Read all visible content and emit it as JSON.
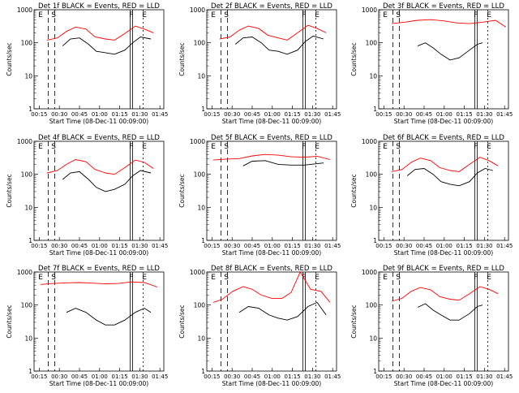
{
  "figure": {
    "xlabel": "Start Time (08-Dec-11 00:09:00)",
    "ylabel": "Counts/sec",
    "xticks": [
      "00:15",
      "00:30",
      "00:45",
      "01:00",
      "01:15",
      "01:30",
      "01:45"
    ],
    "yticks": [
      "1",
      "10",
      "100",
      "1000"
    ],
    "colors": {
      "events": "#000000",
      "lld": "#ff0000"
    }
  },
  "chart_data": [
    {
      "type": "line",
      "title": "Det 1f BLACK = Events, RED = LLD",
      "flags": [
        "E",
        "S",
        "F",
        "E"
      ],
      "series": [
        {
          "color": "#ff0000",
          "x": [
            0.1,
            0.18,
            0.25,
            0.32,
            0.4,
            0.47,
            0.55,
            0.62,
            0.7,
            0.78,
            0.85,
            0.92
          ],
          "y": [
            120,
            140,
            220,
            300,
            260,
            150,
            130,
            120,
            190,
            320,
            260,
            200
          ]
        },
        {
          "color": "#000000",
          "x": [
            0.22,
            0.28,
            0.35,
            0.42,
            0.48,
            0.55,
            0.62,
            0.7,
            0.76,
            0.82,
            0.9
          ],
          "y": [
            80,
            130,
            140,
            90,
            55,
            50,
            45,
            60,
            100,
            150,
            130
          ]
        }
      ]
    },
    {
      "type": "line",
      "title": "Det 2f BLACK = Events, RED = LLD",
      "flags": [
        "E",
        "S",
        "F",
        "E"
      ],
      "series": [
        {
          "color": "#ff0000",
          "x": [
            0.1,
            0.18,
            0.25,
            0.32,
            0.4,
            0.47,
            0.55,
            0.62,
            0.7,
            0.78,
            0.85,
            0.92
          ],
          "y": [
            130,
            150,
            240,
            320,
            270,
            170,
            140,
            120,
            200,
            340,
            270,
            200
          ]
        },
        {
          "color": "#000000",
          "x": [
            0.22,
            0.28,
            0.35,
            0.42,
            0.48,
            0.55,
            0.62,
            0.7,
            0.76,
            0.82,
            0.9
          ],
          "y": [
            90,
            140,
            150,
            100,
            60,
            55,
            45,
            60,
            110,
            160,
            130
          ]
        }
      ]
    },
    {
      "type": "line",
      "title": "Det 3f BLACK = Events, RED = LLD",
      "flags": [
        "E",
        "S",
        "F",
        "E"
      ],
      "series": [
        {
          "color": "#ff0000",
          "x": [
            0.1,
            0.2,
            0.3,
            0.4,
            0.5,
            0.6,
            0.7,
            0.8,
            0.9,
            0.98
          ],
          "y": [
            380,
            420,
            480,
            500,
            460,
            400,
            380,
            420,
            480,
            300
          ]
        },
        {
          "color": "#000000",
          "x": [
            0.3,
            0.36,
            0.42,
            0.48,
            0.55,
            0.62,
            0.7,
            0.76,
            0.8
          ],
          "y": [
            80,
            100,
            70,
            45,
            30,
            35,
            60,
            90,
            100
          ]
        }
      ]
    },
    {
      "type": "line",
      "title": "Det 4f BLACK = Events, RED = LLD",
      "flags": [
        "E",
        "S",
        "F",
        "E"
      ],
      "series": [
        {
          "color": "#ff0000",
          "x": [
            0.1,
            0.18,
            0.25,
            0.32,
            0.4,
            0.47,
            0.55,
            0.62,
            0.7,
            0.78,
            0.85,
            0.92
          ],
          "y": [
            110,
            130,
            200,
            280,
            240,
            140,
            110,
            100,
            160,
            270,
            230,
            150
          ]
        },
        {
          "color": "#000000",
          "x": [
            0.22,
            0.28,
            0.35,
            0.42,
            0.48,
            0.55,
            0.62,
            0.7,
            0.76,
            0.82,
            0.9
          ],
          "y": [
            70,
            110,
            120,
            70,
            40,
            30,
            35,
            50,
            90,
            130,
            110
          ]
        }
      ]
    },
    {
      "type": "line",
      "title": "Det 5f BLACK = Events, RED = LLD",
      "flags": [
        "E",
        "S",
        "F",
        "E"
      ],
      "series": [
        {
          "color": "#ff0000",
          "x": [
            0.05,
            0.15,
            0.25,
            0.35,
            0.45,
            0.55,
            0.65,
            0.75,
            0.85,
            0.95
          ],
          "y": [
            270,
            290,
            300,
            360,
            400,
            380,
            340,
            330,
            350,
            280
          ]
        },
        {
          "color": "#000000",
          "x": [
            0.28,
            0.35,
            0.45,
            0.55,
            0.65,
            0.75,
            0.85,
            0.9
          ],
          "y": [
            180,
            250,
            260,
            200,
            190,
            190,
            210,
            220
          ]
        }
      ]
    },
    {
      "type": "line",
      "title": "Det 6f BLACK = Events, RED = LLD",
      "flags": [
        "E",
        "S",
        "F",
        "E"
      ],
      "series": [
        {
          "color": "#ff0000",
          "x": [
            0.1,
            0.18,
            0.25,
            0.32,
            0.4,
            0.47,
            0.55,
            0.62,
            0.7,
            0.78,
            0.85,
            0.92
          ],
          "y": [
            120,
            140,
            230,
            310,
            260,
            160,
            130,
            120,
            200,
            330,
            260,
            180
          ]
        },
        {
          "color": "#000000",
          "x": [
            0.22,
            0.28,
            0.35,
            0.42,
            0.48,
            0.55,
            0.62,
            0.7,
            0.76,
            0.82,
            0.88
          ],
          "y": [
            90,
            140,
            150,
            100,
            60,
            50,
            45,
            60,
            110,
            150,
            130
          ]
        }
      ]
    },
    {
      "type": "line",
      "title": "Det 7f BLACK = Events, RED = LLD",
      "flags": [
        "E",
        "S",
        "F",
        "E"
      ],
      "series": [
        {
          "color": "#ff0000",
          "x": [
            0.05,
            0.15,
            0.25,
            0.35,
            0.45,
            0.55,
            0.65,
            0.75,
            0.85,
            0.95
          ],
          "y": [
            420,
            450,
            470,
            480,
            460,
            440,
            450,
            500,
            480,
            350
          ]
        },
        {
          "color": "#000000",
          "x": [
            0.25,
            0.32,
            0.4,
            0.48,
            0.55,
            0.62,
            0.7,
            0.78,
            0.85,
            0.9
          ],
          "y": [
            60,
            80,
            60,
            35,
            25,
            25,
            35,
            60,
            80,
            60
          ]
        }
      ]
    },
    {
      "type": "line",
      "title": "Det 8f BLACK = Events, RED = LLD",
      "flags": [
        "E",
        "S",
        "F",
        "E"
      ],
      "series": [
        {
          "color": "#ff0000",
          "x": [
            0.05,
            0.12,
            0.2,
            0.28,
            0.35,
            0.42,
            0.5,
            0.58,
            0.65,
            0.72,
            0.8,
            0.88,
            0.95
          ],
          "y": [
            120,
            150,
            260,
            360,
            300,
            200,
            160,
            160,
            240,
            1000,
            300,
            260,
            120
          ]
        },
        {
          "color": "#000000",
          "x": [
            0.25,
            0.32,
            0.4,
            0.48,
            0.55,
            0.62,
            0.7,
            0.78,
            0.85,
            0.92
          ],
          "y": [
            60,
            90,
            80,
            50,
            40,
            35,
            45,
            90,
            120,
            50
          ]
        }
      ]
    },
    {
      "type": "line",
      "title": "Det 9f BLACK = Events, RED = LLD",
      "flags": [
        "E",
        "S",
        "F",
        "E"
      ],
      "series": [
        {
          "color": "#ff0000",
          "x": [
            0.1,
            0.18,
            0.25,
            0.32,
            0.4,
            0.47,
            0.55,
            0.62,
            0.7,
            0.78,
            0.85,
            0.92
          ],
          "y": [
            130,
            160,
            260,
            340,
            290,
            180,
            150,
            140,
            220,
            360,
            300,
            220
          ]
        },
        {
          "color": "#000000",
          "x": [
            0.3,
            0.36,
            0.42,
            0.48,
            0.55,
            0.62,
            0.7,
            0.76,
            0.8
          ],
          "y": [
            85,
            110,
            70,
            50,
            35,
            35,
            55,
            90,
            100
          ]
        }
      ]
    }
  ]
}
